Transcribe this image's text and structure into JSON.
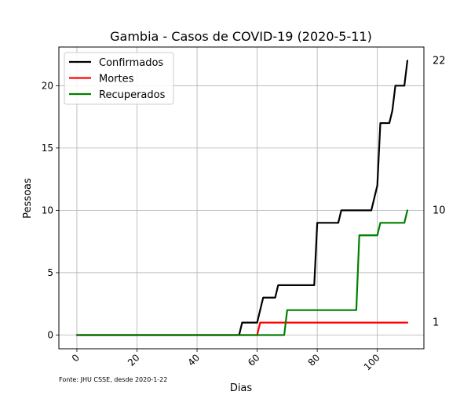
{
  "chart_data": {
    "type": "line",
    "title": "Gambia - Casos de COVID-19 (2020-5-11)",
    "xlabel": "Dias",
    "ylabel": "Pessoas",
    "xlim": [
      -6,
      115.5
    ],
    "ylim": [
      -1.1,
      23.1
    ],
    "xticks": [
      0,
      20,
      40,
      60,
      80,
      100
    ],
    "yticks": [
      0,
      5,
      10,
      15,
      20
    ],
    "grid": true,
    "legend_position": "top-left",
    "source_note": "Fonte: JHU CSSE, desde 2020-1-22",
    "right_labels": [
      {
        "value": 22,
        "label": "22"
      },
      {
        "value": 10,
        "label": "10"
      },
      {
        "value": 1,
        "label": "1"
      }
    ],
    "series": [
      {
        "name": "Confirmados",
        "color": "#000000",
        "points": [
          [
            0,
            0
          ],
          [
            54,
            0
          ],
          [
            55,
            1
          ],
          [
            59,
            1
          ],
          [
            60,
            1
          ],
          [
            61,
            2
          ],
          [
            62,
            3
          ],
          [
            65,
            3
          ],
          [
            66,
            3
          ],
          [
            67,
            4
          ],
          [
            78,
            4
          ],
          [
            79,
            4
          ],
          [
            80,
            9
          ],
          [
            87,
            9
          ],
          [
            88,
            10
          ],
          [
            98,
            10
          ],
          [
            100,
            12
          ],
          [
            101,
            17
          ],
          [
            104,
            17
          ],
          [
            105,
            18
          ],
          [
            106,
            20
          ],
          [
            108,
            20
          ],
          [
            109,
            20
          ],
          [
            110,
            22
          ]
        ]
      },
      {
        "name": "Mortes",
        "color": "#ff0000",
        "points": [
          [
            0,
            0
          ],
          [
            60,
            0
          ],
          [
            61,
            1
          ],
          [
            110,
            1
          ]
        ]
      },
      {
        "name": "Recuperados",
        "color": "#008000",
        "points": [
          [
            0,
            0
          ],
          [
            69,
            0
          ],
          [
            70,
            2
          ],
          [
            93,
            2
          ],
          [
            94,
            8
          ],
          [
            100,
            8
          ],
          [
            101,
            9
          ],
          [
            109,
            9
          ],
          [
            110,
            10
          ]
        ]
      }
    ]
  }
}
